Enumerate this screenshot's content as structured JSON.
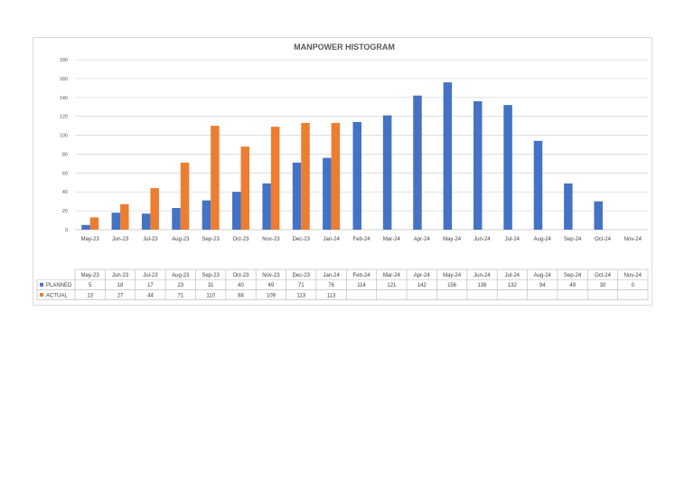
{
  "chart_data": {
    "type": "bar",
    "title": "MANPOWER HISTOGRAM",
    "categories": [
      "May-23",
      "Jun-23",
      "Jul-23",
      "Aug-23",
      "Sep-23",
      "Oct-23",
      "Nov-23",
      "Dec-23",
      "Jan-24",
      "Feb-24",
      "Mar-24",
      "Apr-24",
      "May-24",
      "Jun-24",
      "Jul-24",
      "Aug-24",
      "Sep-24",
      "Oct-24",
      "Nov-24"
    ],
    "series": [
      {
        "name": "PLANNED",
        "color": "#4472c4",
        "values": [
          5,
          18,
          17,
          23,
          31,
          40,
          49,
          71,
          76,
          114,
          121,
          142,
          156,
          136,
          132,
          94,
          49,
          30,
          0
        ]
      },
      {
        "name": "ACTUAL",
        "color": "#ed7d31",
        "values": [
          13,
          27,
          44,
          71,
          110,
          88,
          109,
          113,
          113,
          null,
          null,
          null,
          null,
          null,
          null,
          null,
          null,
          null,
          null
        ]
      }
    ],
    "ylim": [
      0,
      180
    ],
    "yticks": [
      0,
      20,
      40,
      60,
      80,
      100,
      120,
      140,
      160,
      180
    ],
    "grid": true,
    "legend": "data-table-left",
    "xlabel": "",
    "ylabel": ""
  }
}
